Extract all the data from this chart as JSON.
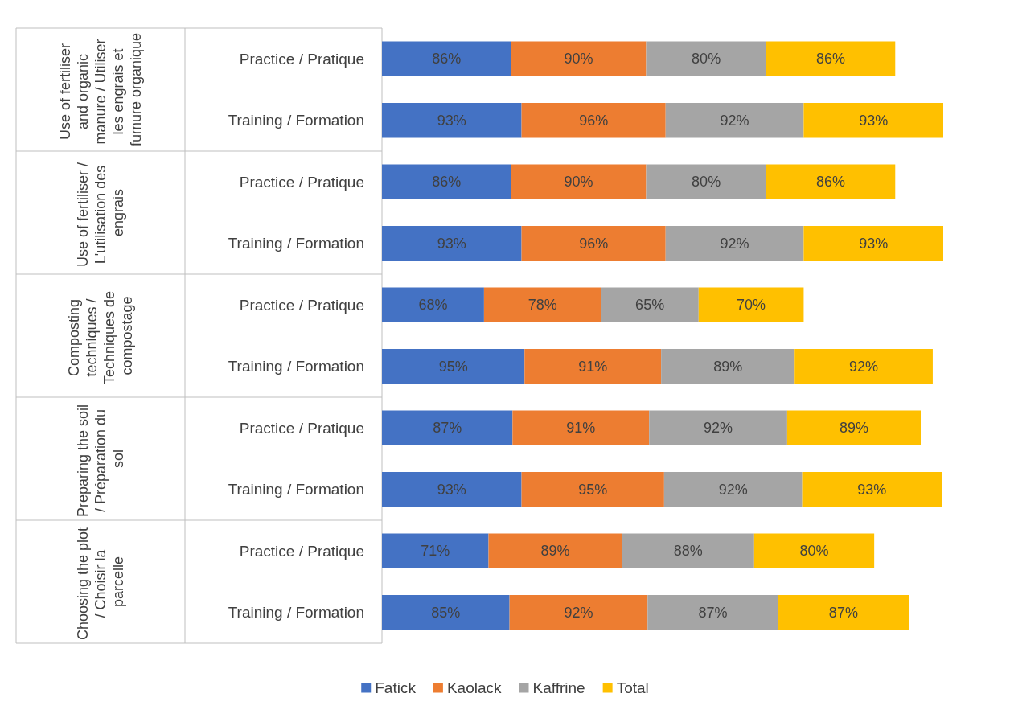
{
  "chart_data": {
    "type": "bar",
    "orientation": "horizontal",
    "stacked": true,
    "legend": "bottom",
    "categories": [
      "Practice / Pratique",
      "Training / Formation",
      "Practice / Pratique",
      "Training / Formation",
      "Practice / Pratique",
      "Training / Formation",
      "Practice / Pratique",
      "Training / Formation",
      "Practice / Pratique",
      "Training / Formation"
    ],
    "annotations": [
      "Use of fertiliser and organic manure / Utiliser les engrais et fumure organique",
      "Use of fertiliser / L'utilisation des engrais",
      "Composting techniques / Techniques de compostage",
      "Preparing the soil / Préparation du sol",
      "Choosing the plot / Choisir la parcelle"
    ],
    "series": [
      {
        "name": "Fatick",
        "color": "#4472c4",
        "values": [
          86,
          93,
          86,
          93,
          68,
          95,
          87,
          93,
          71,
          85
        ],
        "value_labels": [
          "86%",
          "93%",
          "86%",
          "93%",
          "68%",
          "95%",
          "87%",
          "93%",
          "71%",
          "85%"
        ]
      },
      {
        "name": "Kaolack",
        "color": "#ed7d31",
        "values": [
          90,
          96,
          90,
          96,
          78,
          91,
          91,
          95,
          89,
          92
        ],
        "value_labels": [
          "90%",
          "96%",
          "90%",
          "96%",
          "78%",
          "91%",
          "91%",
          "95%",
          "89%",
          "92%"
        ]
      },
      {
        "name": "Kaffrine",
        "color": "#a5a5a5",
        "values": [
          80,
          92,
          80,
          92,
          65,
          89,
          92,
          92,
          88,
          87
        ],
        "value_labels": [
          "80%",
          "92%",
          "80%",
          "92%",
          "65%",
          "89%",
          "92%",
          "92%",
          "88%",
          "87%"
        ]
      },
      {
        "name": "Total",
        "color": "#ffc000",
        "values": [
          86,
          93,
          86,
          93,
          70,
          92,
          89,
          93,
          80,
          87
        ],
        "value_labels": [
          "86%",
          "93%",
          "86%",
          "93%",
          "70%",
          "92%",
          "89%",
          "93%",
          "80%",
          "87%"
        ]
      }
    ]
  }
}
